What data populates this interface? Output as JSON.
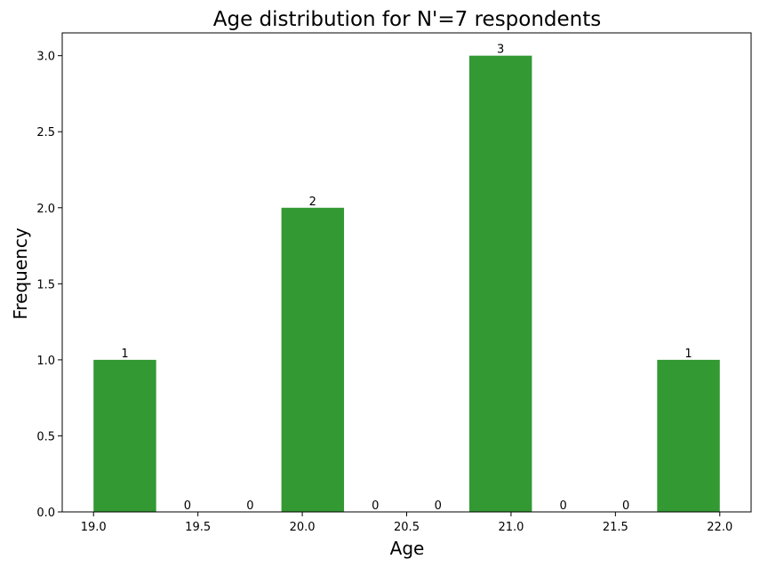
{
  "chart_data": {
    "type": "bar",
    "title": "Age distribution for N'=7 respondents",
    "xlabel": "Age",
    "ylabel": "Frequency",
    "bins": [
      {
        "start": 19.0,
        "end": 19.3,
        "value": 1
      },
      {
        "start": 19.3,
        "end": 19.6,
        "value": 0
      },
      {
        "start": 19.6,
        "end": 19.9,
        "value": 0
      },
      {
        "start": 19.9,
        "end": 20.2,
        "value": 2
      },
      {
        "start": 20.2,
        "end": 20.5,
        "value": 0
      },
      {
        "start": 20.5,
        "end": 20.8,
        "value": 0
      },
      {
        "start": 20.8,
        "end": 21.1,
        "value": 3
      },
      {
        "start": 21.1,
        "end": 21.4,
        "value": 0
      },
      {
        "start": 21.4,
        "end": 21.7,
        "value": 0
      },
      {
        "start": 21.7,
        "end": 22.0,
        "value": 1
      }
    ],
    "data_labels": [
      "1",
      "0",
      "0",
      "2",
      "0",
      "0",
      "3",
      "0",
      "0",
      "1"
    ],
    "xlim": [
      18.85,
      22.15
    ],
    "ylim": [
      0,
      3.15
    ],
    "xticks": [
      19.0,
      19.5,
      20.0,
      20.5,
      21.0,
      21.5,
      22.0
    ],
    "xtick_labels": [
      "19.0",
      "19.5",
      "20.0",
      "20.5",
      "21.0",
      "21.5",
      "22.0"
    ],
    "yticks": [
      0,
      0.5,
      1.0,
      1.5,
      2.0,
      2.5,
      3.0
    ],
    "ytick_labels": [
      "0.0",
      "0.5",
      "1.0",
      "1.5",
      "2.0",
      "2.5",
      "3.0"
    ],
    "grid": false,
    "bar_color": "#339933"
  }
}
